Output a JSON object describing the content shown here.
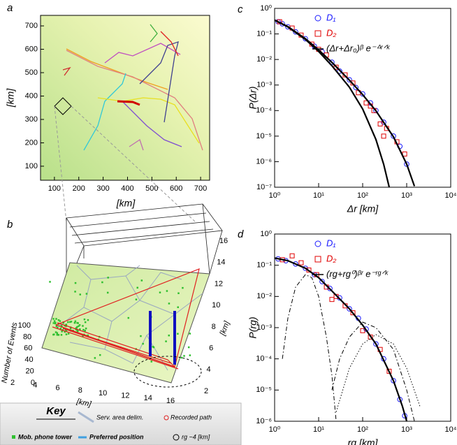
{
  "chart_data": [
    {
      "type": "map",
      "label": "a",
      "xlabel": "[km]",
      "ylabel": "[km]",
      "xlim": [
        43,
        737
      ],
      "ylim": [
        40,
        745
      ],
      "xticks": [
        100,
        200,
        300,
        400,
        500,
        600,
        700
      ],
      "yticks": [
        100,
        200,
        300,
        400,
        500,
        600,
        700
      ]
    },
    {
      "type": "3d",
      "label": "b",
      "zlabel": "Number of Events",
      "xlabel": "[km]",
      "ylabel": "[km]",
      "xticks": [
        2,
        4,
        6,
        8,
        10,
        12,
        14,
        16
      ],
      "yticks": [
        2,
        4,
        6,
        8,
        10,
        12,
        14,
        16
      ],
      "zticks": [
        0,
        20,
        40,
        60,
        80,
        100
      ],
      "key": {
        "title": "Key",
        "items": [
          "Serv. area delim.",
          "Recorded path",
          "Mob. phone tower",
          "Preferred position",
          "rg ~4 [km]"
        ]
      }
    },
    {
      "type": "scatter",
      "label": "c",
      "xlabel": "Δr [km]",
      "ylabel": "P(Δr)",
      "xscale": "log",
      "yscale": "log",
      "xlim": [
        1,
        10000
      ],
      "ylim": [
        1e-07,
        1
      ],
      "xticks": [
        {
          "value": 1,
          "label": "10⁰"
        },
        {
          "value": 10,
          "label": "10¹"
        },
        {
          "value": 100,
          "label": "10²"
        },
        {
          "value": 1000,
          "label": "10³"
        },
        {
          "value": 10000,
          "label": "10⁴"
        }
      ],
      "yticks": [
        {
          "value": 1e-07,
          "label": "10⁻⁷"
        },
        {
          "value": 1e-06,
          "label": "10⁻⁶"
        },
        {
          "value": 1e-05,
          "label": "10⁻⁵"
        },
        {
          "value": 0.0001,
          "label": "10⁻⁴"
        },
        {
          "value": 0.001,
          "label": "10⁻³"
        },
        {
          "value": 0.01,
          "label": "10⁻²"
        },
        {
          "value": 0.1,
          "label": "10⁻¹"
        },
        {
          "value": 1,
          "label": "10⁰"
        }
      ],
      "legend": "upper right",
      "series": [
        {
          "name": "D₁",
          "color": "#1a1aff",
          "marker": "circle",
          "x": [
            1.2,
            1.5,
            2,
            3,
            5,
            8,
            12,
            20,
            30,
            50,
            70,
            100,
            150,
            200,
            300,
            500,
            700,
            1000
          ],
          "values": [
            0.3,
            0.25,
            0.19,
            0.12,
            0.065,
            0.033,
            0.02,
            0.0078,
            0.0035,
            0.0016,
            0.0008,
            0.00045,
            0.0002,
            0.0001,
            3.5e-05,
            1e-05,
            4e-06,
            8e-07
          ]
        },
        {
          "name": "D₂",
          "color": "#e00000",
          "marker": "square",
          "x": [
            1.3,
            2.5,
            4,
            7,
            10,
            15,
            25,
            40,
            60,
            80,
            120,
            150,
            180,
            250,
            300,
            350,
            600,
            900
          ],
          "values": [
            0.3,
            0.17,
            0.09,
            0.04,
            0.025,
            0.015,
            0.005,
            0.0025,
            0.0012,
            0.0005,
            0.0002,
            0.00015,
            0.0001,
            3e-05,
            1e-05,
            2e-05,
            6e-06,
            2e-06
          ]
        },
        {
          "name": "(Δr+Δr₀)ᵝ e⁻ᐞʳᐟᵏ",
          "color": "#000000",
          "marker": "line",
          "x": [
            1,
            2,
            5,
            10,
            20,
            50,
            100,
            200,
            500,
            1000,
            1500
          ],
          "values": [
            0.35,
            0.194,
            0.065,
            0.0236,
            0.0077,
            0.00155,
            0.00042,
            9.8e-05,
            9.4e-06,
            8e-07,
            1.1e-07
          ]
        },
        {
          "color": "#000000",
          "marker": "line",
          "x": [
            1,
            2,
            5,
            10,
            20,
            50,
            100,
            200,
            300,
            400
          ],
          "values": [
            0.345,
            0.188,
            0.061,
            0.0207,
            0.0057,
            0.00082,
            0.000115,
            7.4e-06,
            7.9e-07,
            1.02e-07
          ]
        }
      ]
    },
    {
      "type": "scatter",
      "label": "d",
      "xlabel": "rg [km]",
      "ylabel": "P(rg)",
      "xscale": "log",
      "yscale": "log",
      "xlim": [
        1,
        10000
      ],
      "ylim": [
        1e-06,
        1
      ],
      "xticks": [
        {
          "value": 1,
          "label": "10⁰"
        },
        {
          "value": 10,
          "label": "10¹"
        },
        {
          "value": 100,
          "label": "10²"
        },
        {
          "value": 1000,
          "label": "10³"
        },
        {
          "value": 10000,
          "label": "10⁴"
        }
      ],
      "yticks": [
        {
          "value": 1e-06,
          "label": "10⁻⁶"
        },
        {
          "value": 1e-05,
          "label": "10⁻⁵"
        },
        {
          "value": 0.0001,
          "label": "10⁻⁴"
        },
        {
          "value": 0.001,
          "label": "10⁻³"
        },
        {
          "value": 0.01,
          "label": "10⁻²"
        },
        {
          "value": 0.1,
          "label": "10⁻¹"
        },
        {
          "value": 1,
          "label": "10⁰"
        }
      ],
      "legend": "upper right",
      "series": [
        {
          "name": "D₁",
          "color": "#1a1aff",
          "marker": "circle",
          "x": [
            1.2,
            1.8,
            3,
            5,
            8,
            12,
            18,
            30,
            50,
            80,
            120,
            200,
            300,
            500,
            700,
            900
          ],
          "values": [
            0.16,
            0.14,
            0.11,
            0.08,
            0.05,
            0.03,
            0.018,
            0.009,
            0.004,
            0.002,
            0.0009,
            0.0003,
            0.0001,
            2e-05,
            5e-06,
            1.5e-06
          ]
        },
        {
          "name": "D₂",
          "color": "#e00000",
          "marker": "square",
          "x": [
            1.5,
            2.5,
            4,
            6,
            9,
            15,
            20,
            25,
            40,
            60,
            100,
            150,
            250,
            400
          ],
          "values": [
            0.15,
            0.2,
            0.12,
            0.07,
            0.05,
            0.02,
            0.008,
            0.01,
            0.005,
            0.003,
            0.0008,
            0.0005,
            0.0002,
            4e-05
          ]
        },
        {
          "name": "(rg+rg⁰)ᵝʳ e⁻ʳᵍᐟᵏ",
          "color": "#000000",
          "marker": "line",
          "x": [
            1,
            2,
            5,
            10,
            20,
            50,
            100,
            200,
            500,
            800,
            1000
          ],
          "values": [
            0.17,
            0.14,
            0.08,
            0.04,
            0.015,
            0.004,
            0.0012,
            0.0003,
            2e-05,
            3e-06,
            1e-06
          ]
        },
        {
          "color": "#000000",
          "marker": "line",
          "linestyle": "dashdot",
          "x": [
            1.5,
            2,
            3,
            5,
            7,
            10,
            15,
            20,
            25
          ],
          "values": [
            0.0001,
            0.002,
            0.02,
            0.05,
            0.04,
            0.01,
            0.0005,
            3e-05,
            1e-06
          ]
        },
        {
          "color": "#000000",
          "marker": "line",
          "linestyle": "dashdot",
          "x": [
            20,
            30,
            50,
            100,
            200,
            500,
            1000,
            1500
          ],
          "values": [
            1e-05,
            0.0001,
            0.0005,
            0.0015,
            0.001,
            0.0002,
            1e-05,
            1e-06
          ]
        },
        {
          "color": "#000000",
          "marker": "line",
          "linestyle": "dotted",
          "x": [
            25,
            50,
            100,
            200,
            500,
            1000,
            2000
          ],
          "values": [
            2e-06,
            5e-05,
            0.0003,
            0.0006,
            0.0003,
            5e-05,
            3e-06
          ]
        }
      ]
    }
  ]
}
